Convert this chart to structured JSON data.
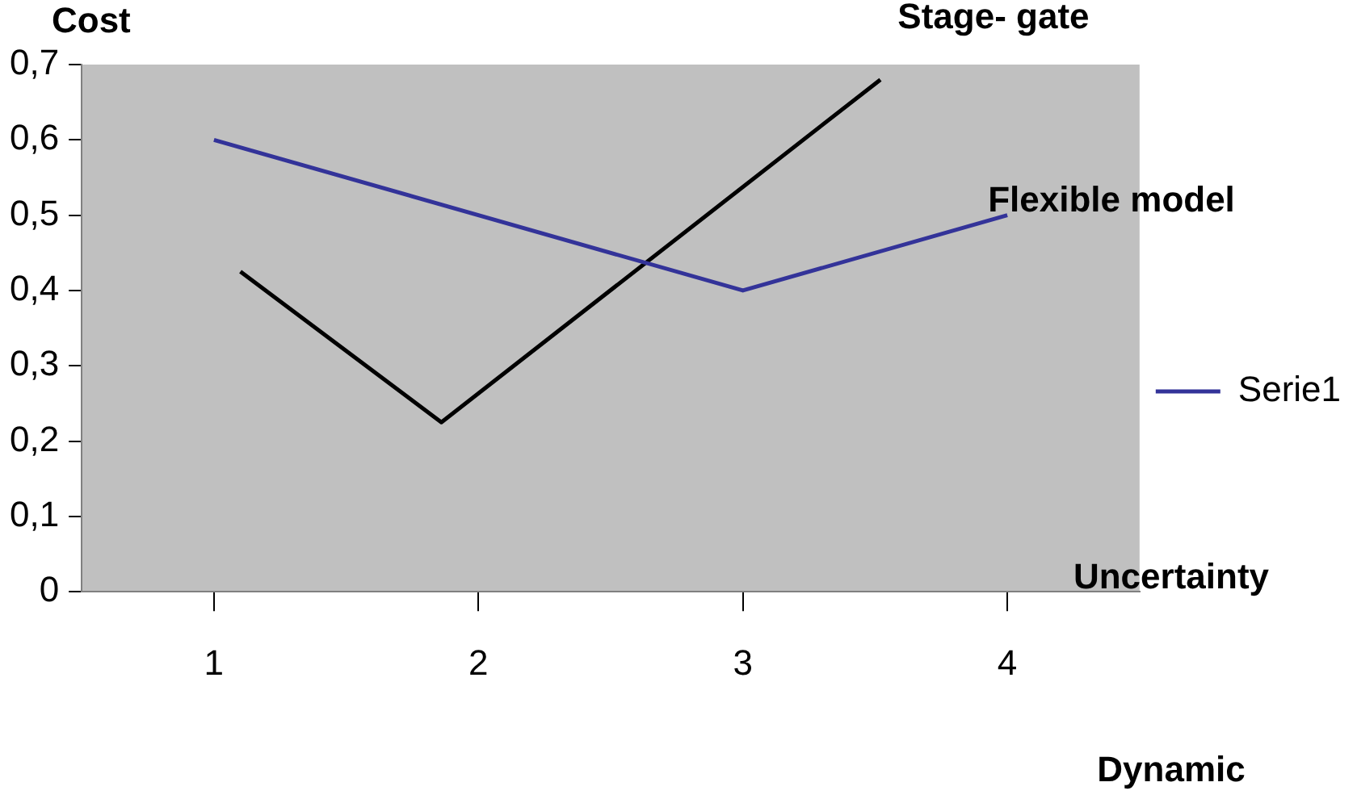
{
  "chart_data": {
    "type": "line",
    "ylabel": "Cost",
    "xlabel": "Uncertainty",
    "xlim": [
      0.5,
      4.5
    ],
    "xticks": [
      1,
      2,
      3,
      4
    ],
    "ylim": [
      0,
      0.7
    ],
    "yticks": [
      0,
      {
        "value": 0.1,
        "label": "0,1"
      },
      {
        "value": 0.2,
        "label": "0,2"
      },
      {
        "value": 0.3,
        "label": "0,3"
      },
      {
        "value": 0.4,
        "label": "0,4"
      },
      {
        "value": 0.5,
        "label": "0,5"
      },
      {
        "value": 0.6,
        "label": "0,6"
      },
      {
        "value": 0.7,
        "label": "0,7"
      }
    ],
    "series": [
      {
        "name": "Serie1",
        "color": "#333399",
        "x": [
          1,
          3,
          4
        ],
        "values": [
          0.6,
          0.4,
          0.5
        ]
      },
      {
        "color": "#000000",
        "x": [
          1.1,
          1.86,
          3.52
        ],
        "values": [
          0.425,
          0.225,
          0.68
        ]
      }
    ],
    "annotations": [
      {
        "text": "Stage- gate",
        "x": 3.52,
        "y": 0.68
      },
      "Flexible model",
      "Dynamic"
    ],
    "legend": "right",
    "grid": false,
    "marker": "none",
    "line_style": "solid"
  }
}
